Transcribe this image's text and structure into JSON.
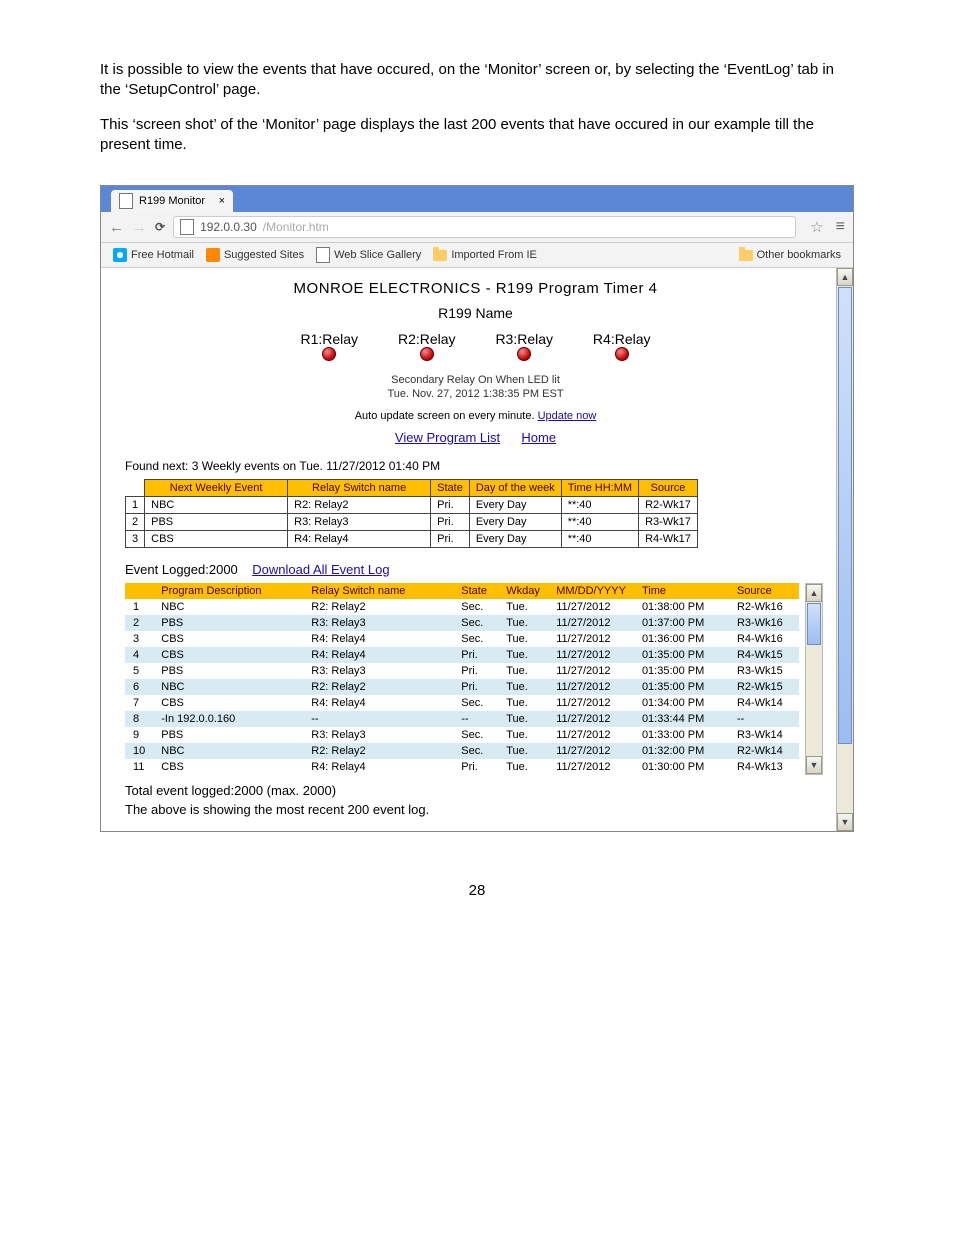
{
  "intro": {
    "p1": "It is possible to view the events that have occured, on the ‘Monitor’ screen or, by selecting the ‘EventLog’ tab in the ‘SetupControl’ page.",
    "p2": "This ‘screen shot’ of the ‘Monitor’ page displays the last 200 events that have occured in our example till the present time."
  },
  "browser": {
    "tab_title": "R199 Monitor",
    "url_host": "192.0.0.30",
    "url_path": "/Monitor.htm",
    "bookmarks": {
      "hotmail": "Free Hotmail",
      "suggested": "Suggested Sites",
      "webslice": "Web Slice Gallery",
      "imported": "Imported From IE",
      "other": "Other bookmarks"
    }
  },
  "page": {
    "title1": "MONROE ELECTRONICS - R199 Program Timer 4",
    "title2": "R199 Name",
    "relays": [
      "R1:Relay",
      "R2:Relay",
      "R3:Relay",
      "R4:Relay"
    ],
    "sub1": "Secondary Relay On When LED lit",
    "sub2": "Tue. Nov. 27, 2012 1:38:35 PM EST",
    "auto_pre": "Auto update screen on every minute. ",
    "auto_link": "Update now",
    "link_view": "View Program List",
    "link_home": "Home",
    "found": "Found next: 3 Weekly events on Tue. 11/27/2012 01:40 PM",
    "upcoming": {
      "headers": [
        "Next Weekly Event",
        "Relay Switch name",
        "State",
        "Day of the week",
        "Time HH:MM",
        "Source"
      ],
      "rows": [
        {
          "n": "1",
          "event": "NBC",
          "relay": "R2: Relay2",
          "state": "Pri.",
          "day": "Every Day",
          "time": "**:40",
          "src": "R2-Wk17"
        },
        {
          "n": "2",
          "event": "PBS",
          "relay": "R3: Relay3",
          "state": "Pri.",
          "day": "Every Day",
          "time": "**:40",
          "src": "R3-Wk17"
        },
        {
          "n": "3",
          "event": "CBS",
          "relay": "R4: Relay4",
          "state": "Pri.",
          "day": "Every Day",
          "time": "**:40",
          "src": "R4-Wk17"
        }
      ]
    },
    "logged_label": "Event Logged:",
    "logged_count": "2000",
    "download_link": "Download All Event Log",
    "log": {
      "headers": [
        "Program Description",
        "Relay Switch name",
        "State",
        "Wkday",
        "MM/DD/YYYY",
        "Time",
        "Source"
      ],
      "rows": [
        {
          "n": "1",
          "desc": "NBC",
          "relay": "R2: Relay2",
          "state": "Sec.",
          "wk": "Tue.",
          "date": "11/27/2012",
          "time": "01:38:00 PM",
          "src": "R2-Wk16"
        },
        {
          "n": "2",
          "desc": "PBS",
          "relay": "R3: Relay3",
          "state": "Sec.",
          "wk": "Tue.",
          "date": "11/27/2012",
          "time": "01:37:00 PM",
          "src": "R3-Wk16"
        },
        {
          "n": "3",
          "desc": "CBS",
          "relay": "R4: Relay4",
          "state": "Sec.",
          "wk": "Tue.",
          "date": "11/27/2012",
          "time": "01:36:00 PM",
          "src": "R4-Wk16"
        },
        {
          "n": "4",
          "desc": "CBS",
          "relay": "R4: Relay4",
          "state": "Pri.",
          "wk": "Tue.",
          "date": "11/27/2012",
          "time": "01:35:00 PM",
          "src": "R4-Wk15"
        },
        {
          "n": "5",
          "desc": "PBS",
          "relay": "R3: Relay3",
          "state": "Pri.",
          "wk": "Tue.",
          "date": "11/27/2012",
          "time": "01:35:00 PM",
          "src": "R3-Wk15"
        },
        {
          "n": "6",
          "desc": "NBC",
          "relay": "R2: Relay2",
          "state": "Pri.",
          "wk": "Tue.",
          "date": "11/27/2012",
          "time": "01:35:00 PM",
          "src": "R2-Wk15"
        },
        {
          "n": "7",
          "desc": "CBS",
          "relay": "R4: Relay4",
          "state": "Sec.",
          "wk": "Tue.",
          "date": "11/27/2012",
          "time": "01:34:00 PM",
          "src": "R4-Wk14"
        },
        {
          "n": "8",
          "desc": "-In 192.0.0.160",
          "relay": "--",
          "state": "--",
          "wk": "Tue.",
          "date": "11/27/2012",
          "time": "01:33:44 PM",
          "src": "--"
        },
        {
          "n": "9",
          "desc": "PBS",
          "relay": "R3: Relay3",
          "state": "Sec.",
          "wk": "Tue.",
          "date": "11/27/2012",
          "time": "01:33:00 PM",
          "src": "R3-Wk14"
        },
        {
          "n": "10",
          "desc": "NBC",
          "relay": "R2: Relay2",
          "state": "Sec.",
          "wk": "Tue.",
          "date": "11/27/2012",
          "time": "01:32:00 PM",
          "src": "R2-Wk14"
        },
        {
          "n": "11",
          "desc": "CBS",
          "relay": "R4: Relay4",
          "state": "Pri.",
          "wk": "Tue.",
          "date": "11/27/2012",
          "time": "01:30:00 PM",
          "src": "R4-Wk13"
        }
      ]
    },
    "totals1": "Total event logged:2000 (max. 2000)",
    "totals2": "The above is showing the most recent 200 event log."
  },
  "pagenum": "28",
  "style": {
    "header_bg": "#ffbf00",
    "alt_row_bg": "#d8eaf2",
    "chrome_tabbar": "#5b87d6"
  }
}
